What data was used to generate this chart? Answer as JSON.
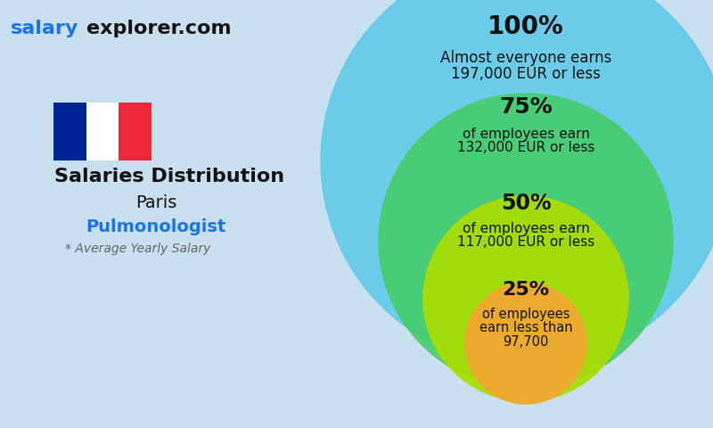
{
  "title_site_bold": "salary",
  "title_site_plain": "explorer.com",
  "title_main": "Salaries Distribution",
  "title_city": "Paris",
  "title_job": "Pulmonologist",
  "title_note": "* Average Yearly Salary",
  "bg_color": "#c8dff0",
  "circle_100_color": "#55c8e8",
  "circle_75_color": "#44cc66",
  "circle_50_color": "#aadd00",
  "circle_25_color": "#f0a830",
  "flag_blue": "#002395",
  "flag_white": "#ffffff",
  "flag_red": "#ED2939",
  "salary_color": "#1a73e8",
  "text_color": "#111111",
  "job_color": "#1a73e8",
  "note_color": "#666666",
  "pct_100": "100%",
  "label_100_l1": "Almost everyone earns",
  "label_100_l2": "197,000 EUR or less",
  "pct_75": "75%",
  "label_75_l1": "of employees earn",
  "label_75_l2": "132,000 EUR or less",
  "pct_50": "50%",
  "label_50_l1": "of employees earn",
  "label_50_l2": "117,000 EUR or less",
  "pct_25": "25%",
  "label_25_l1": "of employees",
  "label_25_l2": "earn less than",
  "label_25_l3": "97,700"
}
